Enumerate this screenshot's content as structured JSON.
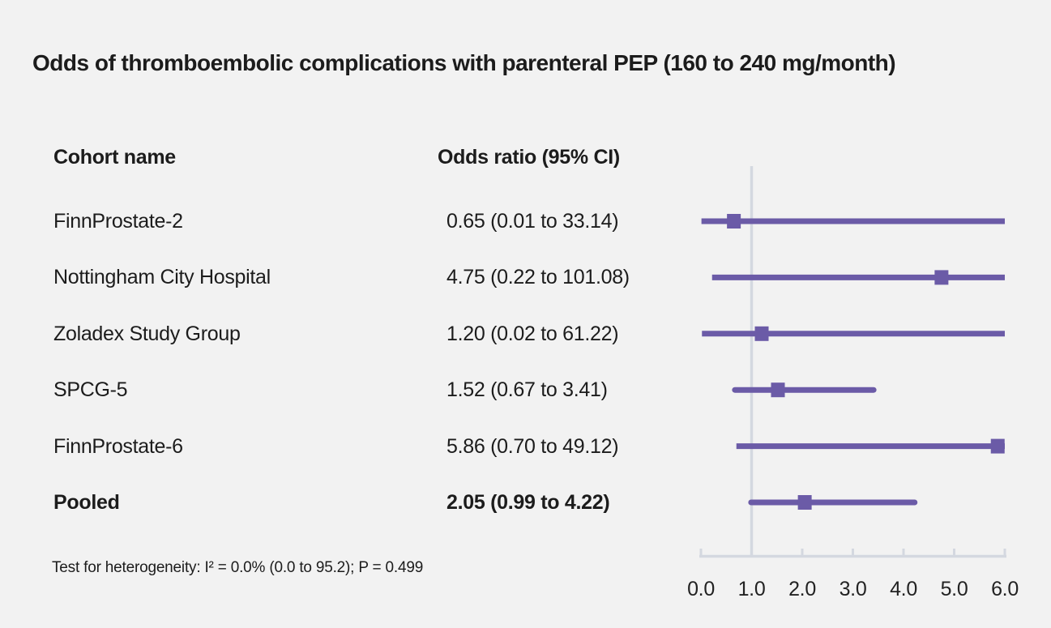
{
  "chart_data": {
    "type": "forest",
    "title": "Odds of thromboembolic complications with parenteral PEP (160 to 240 mg/month)",
    "col_headers": [
      "Cohort name",
      "Odds ratio (95% CI)"
    ],
    "rows": [
      {
        "name": "FinnProstate-2",
        "label": "0.65 (0.01 to 33.14)",
        "or": 0.65,
        "lo": 0.01,
        "hi": 33.14,
        "bold": false
      },
      {
        "name": "Nottingham City Hospital",
        "label": "4.75 (0.22 to 101.08)",
        "or": 4.75,
        "lo": 0.22,
        "hi": 101.08,
        "bold": false
      },
      {
        "name": "Zoladex Study Group",
        "label": "1.20 (0.02 to 61.22)",
        "or": 1.2,
        "lo": 0.02,
        "hi": 61.22,
        "bold": false
      },
      {
        "name": "SPCG-5",
        "label": "1.52 (0.67 to 3.41)",
        "or": 1.52,
        "lo": 0.67,
        "hi": 3.41,
        "bold": false
      },
      {
        "name": "FinnProstate-6",
        "label": "5.86 (0.70 to 49.12)",
        "or": 5.86,
        "lo": 0.7,
        "hi": 49.12,
        "bold": false
      },
      {
        "name": "Pooled",
        "label": "2.05 (0.99 to 4.22)",
        "or": 2.05,
        "lo": 0.99,
        "hi": 4.22,
        "bold": true
      }
    ],
    "x_ticks": [
      "0.0",
      "1.0",
      "2.0",
      "3.0",
      "4.0",
      "5.0",
      "6.0"
    ],
    "x_tick_values": [
      0,
      1,
      2,
      3,
      4,
      5,
      6
    ],
    "x_min": 0,
    "x_max": 6,
    "reference_line": 1.0,
    "footnote": "Test for heterogeneity: I² = 0.0% (0.0 to 95.2); P = 0.499",
    "legend_position": "none",
    "grid": false,
    "colors": {
      "marker": "#6b5ba7",
      "axis": "#d4d8e0",
      "background": "#f2f2f2",
      "text": "#1c1c1c"
    }
  }
}
